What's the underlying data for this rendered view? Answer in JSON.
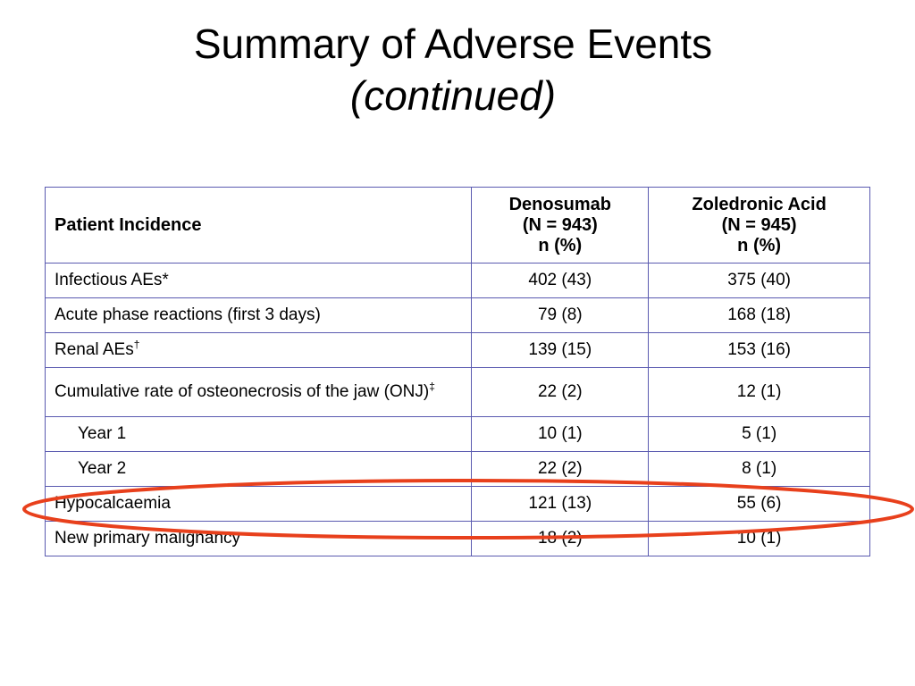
{
  "slide": {
    "title": "Summary of Adverse Events",
    "subtitle": "(continued)"
  },
  "table": {
    "header": {
      "col1": "Patient Incidence",
      "col2_line1": "Denosumab",
      "col2_line2": "(N = 943)",
      "col2_line3": "n (%)",
      "col3_line1": "Zoledronic Acid",
      "col3_line2": "(N = 945)",
      "col3_line3": "n (%)"
    },
    "rows": [
      {
        "label": "Infectious AEs*",
        "mark": "",
        "den": "402 (43)",
        "zol": "375 (40)"
      },
      {
        "label": "Acute phase reactions (first 3 days)",
        "mark": "",
        "den": "79 (8)",
        "zol": "168 (18)"
      },
      {
        "label": "Renal AEs",
        "mark": "†",
        "den": "139 (15)",
        "zol": "153 (16)"
      },
      {
        "label": "Cumulative rate of osteonecrosis of the jaw (ONJ)",
        "mark": "‡",
        "den": "22 (2)",
        "zol": "12 (1)"
      },
      {
        "label": "Year 1",
        "mark": "",
        "den": "10 (1)",
        "zol": "5 (1)"
      },
      {
        "label": "Year 2",
        "mark": "",
        "den": "22 (2)",
        "zol": "8 (1)"
      },
      {
        "label": "Hypocalcaemia",
        "mark": "",
        "den": "121 (13)",
        "zol": "55 (6)"
      },
      {
        "label": "New primary malignancy",
        "mark": "",
        "den": "18 (2)",
        "zol": "10 (1)"
      }
    ]
  },
  "colors": {
    "table_border": "#5a5ab0",
    "highlight_ellipse": "#e8401c"
  }
}
